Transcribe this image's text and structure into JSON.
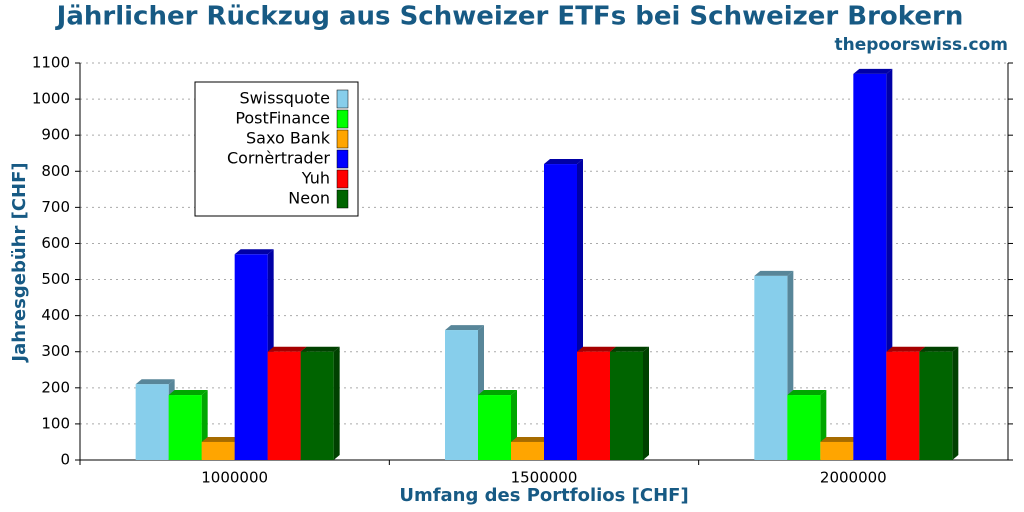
{
  "chart_data": {
    "type": "bar",
    "title": "Jährlicher Rückzug aus Schweizer ETFs bei Schweizer Brokern",
    "subtitle": "thepoorswiss.com",
    "x_label": "Umfang des Portfolios [CHF]",
    "y_label": "Jahresgebühr [CHF]",
    "categories": [
      "1000000",
      "1500000",
      "2000000"
    ],
    "series": [
      {
        "name": "Swissquote",
        "color": "#87ceeb",
        "values": [
          210,
          360,
          510
        ]
      },
      {
        "name": "PostFinance",
        "color": "#00ff00",
        "values": [
          180,
          180,
          180
        ]
      },
      {
        "name": "Saxo Bank",
        "color": "#ffa500",
        "values": [
          50,
          50,
          50
        ]
      },
      {
        "name": "Cornèrtrader",
        "color": "#0000ff",
        "values": [
          570,
          820,
          1070
        ]
      },
      {
        "name": "Yuh",
        "color": "#ff0000",
        "values": [
          300,
          300,
          300
        ]
      },
      {
        "name": "Neon",
        "color": "#006400",
        "values": [
          300,
          300,
          300
        ]
      }
    ],
    "ylim": [
      0,
      1100
    ],
    "yticks": [
      0,
      100,
      200,
      300,
      400,
      500,
      600,
      700,
      800,
      900,
      1000,
      1100
    ],
    "grid": true,
    "legend": "upper-left"
  }
}
